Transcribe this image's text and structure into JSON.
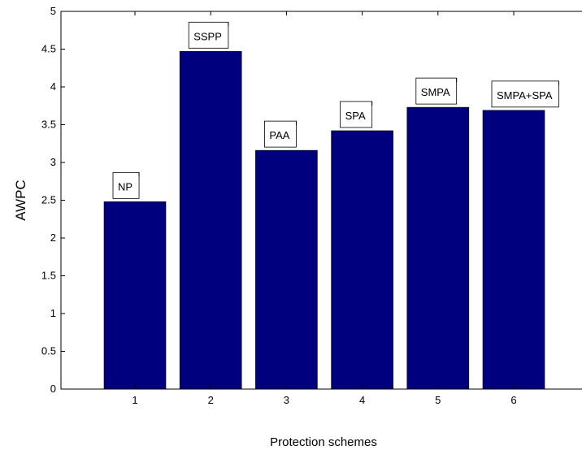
{
  "chart_data": {
    "type": "bar",
    "categories": [
      "1",
      "2",
      "3",
      "4",
      "5",
      "6"
    ],
    "values": [
      2.48,
      4.47,
      3.16,
      3.42,
      3.73,
      3.69
    ],
    "annotations": [
      "NP",
      "SSPP",
      "PAA",
      "SPA",
      "SMPA",
      "SMPA+SPA"
    ],
    "xlabel": "Protection schemes",
    "ylabel": "AWPC",
    "ylim": [
      0,
      5
    ],
    "yticks": [
      "0",
      "0.5",
      "1",
      "1.5",
      "2",
      "2.5",
      "3",
      "3.5",
      "4",
      "4.5",
      "5"
    ],
    "grid": false,
    "bar_color": "#00007f"
  }
}
